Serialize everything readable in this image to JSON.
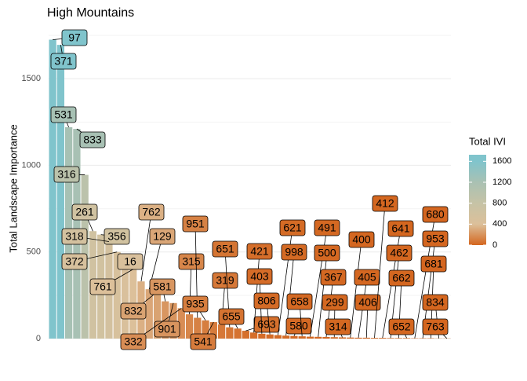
{
  "chart_data": {
    "type": "bar",
    "title": "High Mountains",
    "y_label": "Total Landscape Importance",
    "categories": [
      "97",
      "371",
      "531",
      "833",
      "316",
      "261",
      "356",
      "318",
      "372",
      "16",
      "761",
      "762",
      "129",
      "832",
      "581",
      "901",
      "332",
      "315",
      "951",
      "935",
      "541",
      "319",
      "651",
      "655",
      "693",
      "421",
      "403",
      "806",
      "621",
      "998",
      "580",
      "658",
      "491",
      "500",
      "367",
      "299",
      "314",
      "400",
      "405",
      "406",
      "412",
      "641",
      "462",
      "662",
      "652",
      "680",
      "953",
      "681",
      "834",
      "763"
    ],
    "values": [
      1725,
      1695,
      1220,
      1210,
      945,
      620,
      600,
      560,
      500,
      450,
      400,
      330,
      285,
      270,
      215,
      205,
      175,
      140,
      120,
      105,
      95,
      82,
      65,
      58,
      45,
      35,
      28,
      24,
      20,
      17,
      15,
      13,
      11,
      10,
      9,
      8,
      7,
      6,
      5,
      5,
      4,
      4,
      3,
      3,
      3,
      2,
      2,
      2,
      1,
      1
    ],
    "ylim": [
      0,
      1750
    ],
    "yticks": [
      0,
      500,
      1000,
      1500
    ],
    "grid": true,
    "legend": {
      "title": "Total IVI",
      "ticks": [
        0,
        400,
        800,
        1200,
        1600
      ],
      "colors": [
        "#d4661f",
        "#dcc09a",
        "#c6c3a6",
        "#a9c1b3",
        "#80c4cc"
      ]
    }
  }
}
